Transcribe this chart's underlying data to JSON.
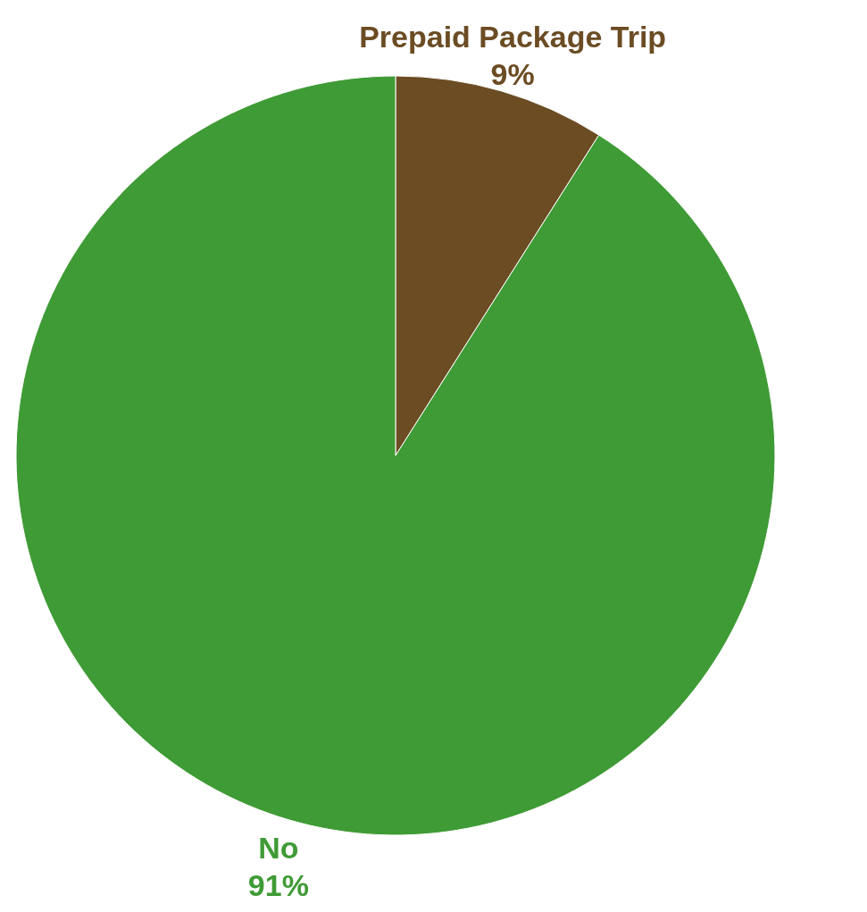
{
  "chart_data": {
    "type": "pie",
    "categories": [
      "Prepaid Package Trip",
      "No"
    ],
    "values": [
      9,
      91
    ],
    "colors": [
      "#6b4c23",
      "#3f9b35"
    ],
    "value_labels": [
      "9%",
      "91%"
    ]
  }
}
